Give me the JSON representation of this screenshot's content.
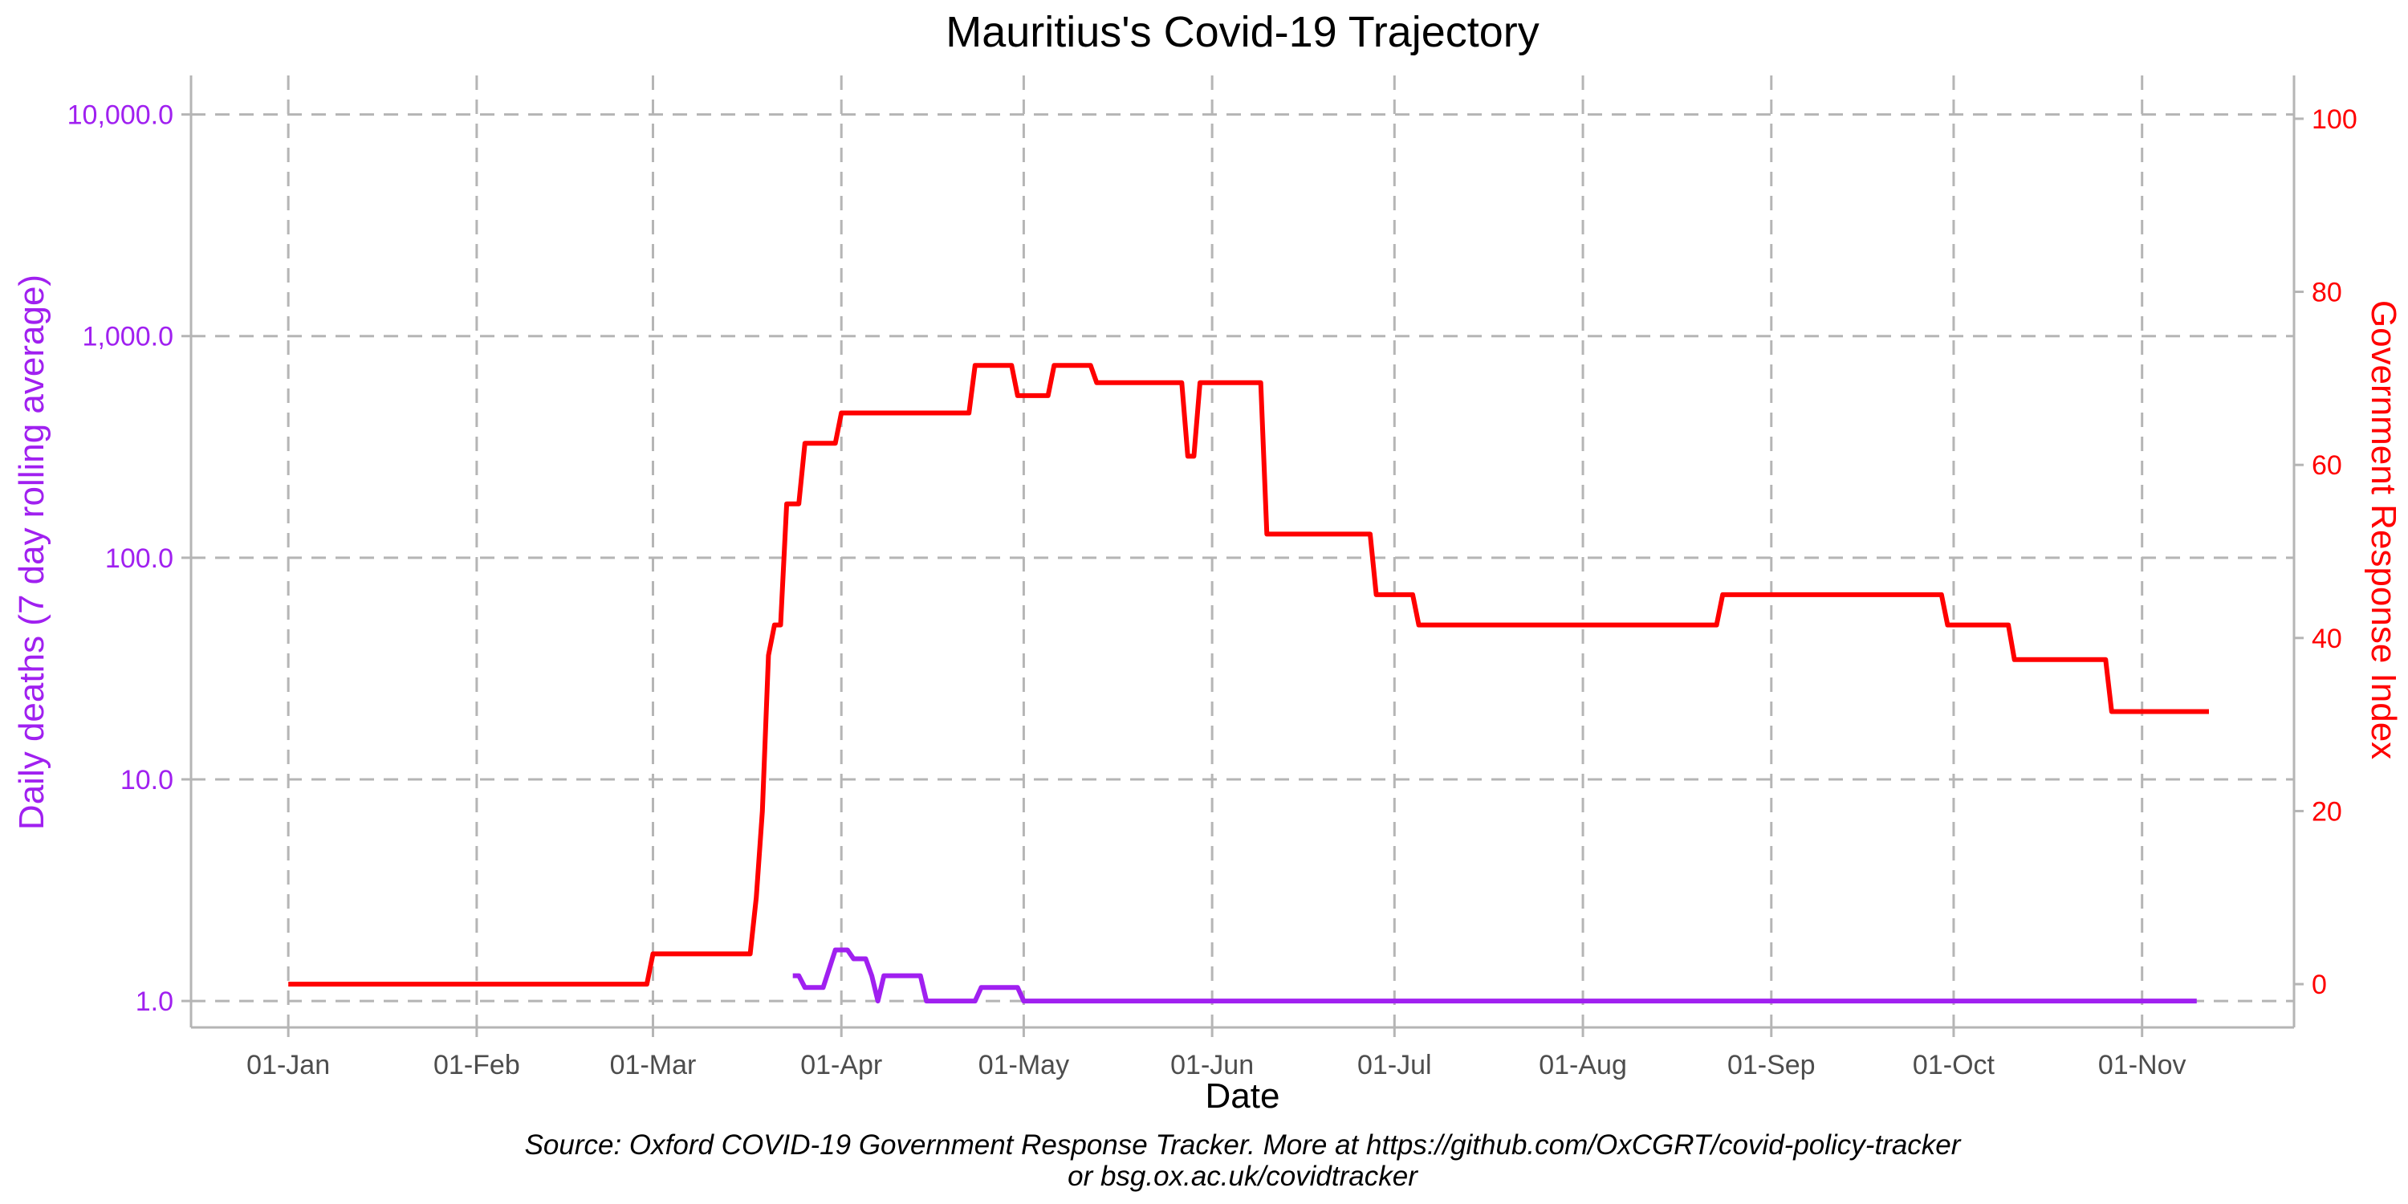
{
  "chart_data": {
    "type": "line",
    "title": "Mauritius's Covid-19 Trajectory",
    "xlabel": "Date",
    "ylabel_left": "Daily deaths (7 day rolling average)",
    "ylabel_right": "Government Response Index",
    "caption_line1": "Source: Oxford COVID-19 Government Response Tracker. More at https://github.com/OxCGRT/covid-policy-tracker",
    "caption_line2": "or bsg.ox.ac.uk/covidtracker",
    "x_ticks": [
      "01-Jan",
      "01-Feb",
      "01-Mar",
      "01-Apr",
      "01-May",
      "01-Jun",
      "01-Jul",
      "01-Aug",
      "01-Sep",
      "01-Oct",
      "01-Nov"
    ],
    "x_tick_dates": [
      "2020-01-01",
      "2020-02-01",
      "2020-03-01",
      "2020-04-01",
      "2020-05-01",
      "2020-06-01",
      "2020-07-01",
      "2020-08-01",
      "2020-09-01",
      "2020-10-01",
      "2020-11-01"
    ],
    "xlim": [
      "2019-12-16",
      "2020-11-26"
    ],
    "y_left": {
      "scale": "log10",
      "ylim": [
        0.76,
        15000
      ],
      "ticks": [
        1,
        10,
        100,
        1000,
        10000
      ],
      "tick_labels": [
        "1.0",
        "10.0",
        "100.0",
        "1,000.0",
        "10,000.0"
      ],
      "color": "#a020f0"
    },
    "y_right": {
      "scale": "linear",
      "ylim": [
        -5,
        105
      ],
      "ticks": [
        0,
        20,
        40,
        60,
        80,
        100
      ],
      "tick_labels": [
        "0",
        "20",
        "40",
        "60",
        "80",
        "100"
      ],
      "color": "#ff0000"
    },
    "grid": true,
    "series": [
      {
        "axis": "right",
        "color": "#ff0000",
        "points": [
          [
            "2020-01-01",
            0
          ],
          [
            "2020-02-29",
            0
          ],
          [
            "2020-03-01",
            3.5
          ],
          [
            "2020-03-17",
            3.5
          ],
          [
            "2020-03-18",
            10
          ],
          [
            "2020-03-19",
            20
          ],
          [
            "2020-03-20",
            38
          ],
          [
            "2020-03-21",
            41.5
          ],
          [
            "2020-03-22",
            41.5
          ],
          [
            "2020-03-23",
            55.5
          ],
          [
            "2020-03-25",
            55.5
          ],
          [
            "2020-03-26",
            62.5
          ],
          [
            "2020-03-31",
            62.5
          ],
          [
            "2020-04-01",
            66
          ],
          [
            "2020-04-22",
            66
          ],
          [
            "2020-04-23",
            71.5
          ],
          [
            "2020-04-29",
            71.5
          ],
          [
            "2020-04-30",
            68
          ],
          [
            "2020-05-05",
            68
          ],
          [
            "2020-05-06",
            71.5
          ],
          [
            "2020-05-12",
            71.5
          ],
          [
            "2020-05-13",
            69.5
          ],
          [
            "2020-05-27",
            69.5
          ],
          [
            "2020-05-28",
            61
          ],
          [
            "2020-05-29",
            61
          ],
          [
            "2020-05-30",
            69.5
          ],
          [
            "2020-06-09",
            69.5
          ],
          [
            "2020-06-10",
            52
          ],
          [
            "2020-06-27",
            52
          ],
          [
            "2020-06-28",
            45
          ],
          [
            "2020-07-04",
            45
          ],
          [
            "2020-07-05",
            41.5
          ],
          [
            "2020-08-23",
            41.5
          ],
          [
            "2020-08-24",
            45
          ],
          [
            "2020-09-29",
            45
          ],
          [
            "2020-09-30",
            41.5
          ],
          [
            "2020-10-10",
            41.5
          ],
          [
            "2020-10-11",
            37.5
          ],
          [
            "2020-10-26",
            37.5
          ],
          [
            "2020-10-27",
            31.5
          ],
          [
            "2020-11-12",
            31.5
          ]
        ]
      },
      {
        "axis": "left",
        "color": "#a020f0",
        "points": [
          [
            "2020-03-24",
            1.3
          ],
          [
            "2020-03-25",
            1.3
          ],
          [
            "2020-03-26",
            1.15
          ],
          [
            "2020-03-28",
            1.15
          ],
          [
            "2020-03-29",
            1.15
          ],
          [
            "2020-03-31",
            1.7
          ],
          [
            "2020-04-02",
            1.7
          ],
          [
            "2020-04-03",
            1.55
          ],
          [
            "2020-04-05",
            1.55
          ],
          [
            "2020-04-06",
            1.3
          ],
          [
            "2020-04-07",
            1.0
          ],
          [
            "2020-04-08",
            1.3
          ],
          [
            "2020-04-14",
            1.3
          ],
          [
            "2020-04-15",
            1.0
          ],
          [
            "2020-04-23",
            1.0
          ],
          [
            "2020-04-24",
            1.15
          ],
          [
            "2020-04-29",
            1.15
          ],
          [
            "2020-04-30",
            1.15
          ],
          [
            "2020-05-01",
            1.0
          ],
          [
            "2020-11-10",
            1.0
          ]
        ]
      }
    ]
  }
}
